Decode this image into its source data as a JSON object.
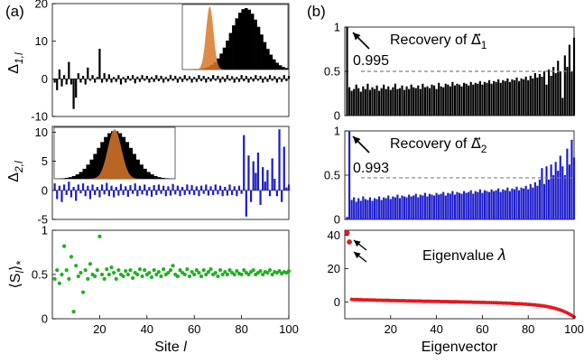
{
  "panel_labels": {
    "a": "(a)",
    "b": "(b)"
  },
  "colors": {
    "black": "#000000",
    "blue": "#1c1ccc",
    "green": "#22b022",
    "red": "#e8161b",
    "orange": "#d9782a",
    "orange_light": "#f0a868",
    "dashed": "#808080"
  },
  "chart_data": [
    {
      "id": "delta1",
      "type": "bar",
      "ylabel": "Δ1,l",
      "ylabel_main": "Δ",
      "ylabel_sub": "1,l",
      "xlim": [
        0,
        100
      ],
      "ylim": [
        -10,
        20
      ],
      "yticks": [
        -10,
        0,
        10,
        20
      ],
      "x": [
        1,
        2,
        3,
        4,
        5,
        6,
        7,
        8,
        9,
        10,
        11,
        12,
        13,
        14,
        15,
        16,
        17,
        18,
        19,
        20,
        21,
        22,
        23,
        24,
        25,
        26,
        27,
        28,
        29,
        30,
        31,
        32,
        33,
        34,
        35,
        36,
        37,
        38,
        39,
        40,
        41,
        42,
        43,
        44,
        45,
        46,
        47,
        48,
        49,
        50,
        51,
        52,
        53,
        54,
        55,
        56,
        57,
        58,
        59,
        60,
        61,
        62,
        63,
        64,
        65,
        66,
        67,
        68,
        69,
        70,
        71,
        72,
        73,
        74,
        75,
        76,
        77,
        78,
        79,
        80,
        81,
        82,
        83,
        84,
        85,
        86,
        87,
        88,
        89,
        90,
        91,
        92,
        93,
        94,
        95,
        96,
        97,
        98,
        99,
        100
      ],
      "values": [
        -1.0,
        -3.0,
        2.5,
        -2.0,
        1.0,
        -1.5,
        4.5,
        -1.5,
        -8.0,
        -5.0,
        1.5,
        -1.0,
        0.8,
        -1.5,
        3.0,
        -0.5,
        1.0,
        -1.0,
        0.5,
        8.0,
        -1.0,
        1.5,
        -0.8,
        1.2,
        -1.0,
        0.5,
        -0.8,
        1.0,
        -1.5,
        0.5,
        -1.0,
        0.8,
        -0.5,
        1.0,
        -1.2,
        0.6,
        -0.8,
        1.0,
        -0.5,
        0.8,
        -1.0,
        0.5,
        -0.8,
        1.0,
        -0.6,
        0.8,
        -1.0,
        0.5,
        -0.7,
        1.0,
        -0.5,
        0.8,
        -1.0,
        0.6,
        -0.8,
        1.0,
        -0.5,
        0.7,
        -1.0,
        0.5,
        -0.8,
        1.0,
        -0.6,
        0.8,
        -1.0,
        0.5,
        -0.7,
        1.0,
        -0.5,
        0.8,
        -1.0,
        0.6,
        -0.8,
        1.0,
        -0.5,
        0.7,
        -1.0,
        0.5,
        -0.8,
        1.0,
        -0.6,
        0.8,
        -1.0,
        0.5,
        -0.7,
        1.0,
        -0.5,
        0.8,
        -1.0,
        0.6,
        -0.8,
        1.0,
        -0.5,
        0.7,
        -1.0,
        0.5,
        -0.8,
        1.0,
        -0.6,
        0.8
      ],
      "inset": {
        "type": "histogram",
        "series": [
          "narrow-orange",
          "broad-black"
        ]
      }
    },
    {
      "id": "delta2",
      "type": "bar",
      "ylabel": "Δ2,l",
      "ylabel_main": "Δ",
      "ylabel_sub": "2,l",
      "xlim": [
        0,
        100
      ],
      "ylim": [
        -5,
        11
      ],
      "yticks": [
        -5,
        0,
        5,
        10
      ],
      "x": [
        1,
        2,
        3,
        4,
        5,
        6,
        7,
        8,
        9,
        10,
        11,
        12,
        13,
        14,
        15,
        16,
        17,
        18,
        19,
        20,
        21,
        22,
        23,
        24,
        25,
        26,
        27,
        28,
        29,
        30,
        31,
        32,
        33,
        34,
        35,
        36,
        37,
        38,
        39,
        40,
        41,
        42,
        43,
        44,
        45,
        46,
        47,
        48,
        49,
        50,
        51,
        52,
        53,
        54,
        55,
        56,
        57,
        58,
        59,
        60,
        61,
        62,
        63,
        64,
        65,
        66,
        67,
        68,
        69,
        70,
        71,
        72,
        73,
        74,
        75,
        76,
        77,
        78,
        79,
        80,
        81,
        82,
        83,
        84,
        85,
        86,
        87,
        88,
        89,
        90,
        91,
        92,
        93,
        94,
        95,
        96,
        97,
        98,
        99,
        100
      ],
      "values": [
        1.2,
        -1.5,
        0.8,
        -2.0,
        1.0,
        -0.8,
        1.5,
        -1.2,
        0.6,
        -1.8,
        1.0,
        -0.5,
        1.2,
        -1.0,
        0.8,
        -1.5,
        1.0,
        -0.8,
        0.6,
        -1.2,
        1.0,
        -0.7,
        1.3,
        -1.0,
        0.8,
        -1.2,
        0.6,
        -0.9,
        1.1,
        -0.8,
        0.7,
        -1.1,
        0.9,
        -0.6,
        1.2,
        -1.0,
        0.8,
        -0.7,
        1.0,
        -0.9,
        0.6,
        -1.1,
        0.9,
        -0.8,
        1.0,
        -0.6,
        0.8,
        -1.0,
        0.7,
        -0.9,
        1.1,
        -0.7,
        0.8,
        -1.0,
        0.6,
        -0.8,
        1.0,
        -0.7,
        0.9,
        -0.8,
        0.7,
        -1.0,
        0.8,
        -0.6,
        1.0,
        -0.9,
        0.7,
        -0.8,
        1.0,
        -0.7,
        0.8,
        -1.0,
        0.6,
        -0.9,
        1.0,
        -0.8,
        0.7,
        -1.0,
        0.8,
        -0.6,
        9.5,
        -4.5,
        6.0,
        -2.0,
        5.0,
        3.0,
        6.5,
        -2.5,
        4.0,
        1.5,
        3.5,
        -1.0,
        5.5,
        2.0,
        -1.0,
        10.5,
        -2.0,
        7.5,
        0.5,
        1.0
      ],
      "inset": {
        "type": "histogram",
        "series": [
          "broad-black",
          "narrow-orange"
        ]
      }
    },
    {
      "id": "s_avg",
      "type": "scatter",
      "ylabel": "⟨S l⟩ *",
      "ylabel_main": "⟨S",
      "ylabel_l": "l",
      "ylabel_close": "⟩",
      "ylabel_sub": "*",
      "xlabel": "Site l",
      "xlabel_main": "Site ",
      "xlabel_var": "l",
      "xlim": [
        0,
        100
      ],
      "ylim": [
        0,
        1
      ],
      "xticks": [
        20,
        40,
        60,
        80,
        100
      ],
      "yticks": [
        0,
        0.5,
        1
      ],
      "x": [
        1,
        2,
        3,
        4,
        5,
        6,
        7,
        8,
        9,
        10,
        11,
        12,
        13,
        14,
        15,
        16,
        17,
        18,
        19,
        20,
        21,
        22,
        23,
        24,
        25,
        26,
        27,
        28,
        29,
        30,
        31,
        32,
        33,
        34,
        35,
        36,
        37,
        38,
        39,
        40,
        41,
        42,
        43,
        44,
        45,
        46,
        47,
        48,
        49,
        50,
        51,
        52,
        53,
        54,
        55,
        56,
        57,
        58,
        59,
        60,
        61,
        62,
        63,
        64,
        65,
        66,
        67,
        68,
        69,
        70,
        71,
        72,
        73,
        74,
        75,
        76,
        77,
        78,
        79,
        80,
        81,
        82,
        83,
        84,
        85,
        86,
        87,
        88,
        89,
        90,
        91,
        92,
        93,
        94,
        95,
        96,
        97,
        98,
        99,
        100
      ],
      "values": [
        0.45,
        0.55,
        0.4,
        0.5,
        0.82,
        0.55,
        0.45,
        0.7,
        0.08,
        0.6,
        0.48,
        0.52,
        0.3,
        0.55,
        0.45,
        0.62,
        0.5,
        0.48,
        0.55,
        0.93,
        0.5,
        0.45,
        0.56,
        0.5,
        0.58,
        0.52,
        0.45,
        0.55,
        0.5,
        0.48,
        0.54,
        0.5,
        0.55,
        0.46,
        0.52,
        0.5,
        0.56,
        0.48,
        0.55,
        0.5,
        0.52,
        0.47,
        0.55,
        0.5,
        0.53,
        0.48,
        0.56,
        0.5,
        0.52,
        0.55,
        0.6,
        0.5,
        0.48,
        0.55,
        0.52,
        0.5,
        0.56,
        0.48,
        0.53,
        0.5,
        0.55,
        0.52,
        0.48,
        0.55,
        0.5,
        0.53,
        0.56,
        0.5,
        0.52,
        0.48,
        0.55,
        0.5,
        0.53,
        0.5,
        0.55,
        0.52,
        0.5,
        0.54,
        0.51,
        0.5,
        0.55,
        0.52,
        0.5,
        0.53,
        0.55,
        0.5,
        0.52,
        0.54,
        0.5,
        0.53,
        0.52,
        0.55,
        0.5,
        0.53,
        0.52,
        0.54,
        0.51,
        0.53,
        0.52,
        0.54
      ]
    },
    {
      "id": "recovery1",
      "type": "bar",
      "annotation": "Recovery of ",
      "annotation_vec": "Δ⃗",
      "annotation_sub": "1",
      "marker_value": "0.995",
      "dashed_line": 0.5,
      "xlim": [
        0,
        100
      ],
      "ylim": [
        0,
        1
      ],
      "yticks": [
        0,
        0.5,
        1
      ],
      "x": [
        1,
        2,
        3,
        4,
        5,
        6,
        7,
        8,
        9,
        10,
        11,
        12,
        13,
        14,
        15,
        16,
        17,
        18,
        19,
        20,
        21,
        22,
        23,
        24,
        25,
        26,
        27,
        28,
        29,
        30,
        31,
        32,
        33,
        34,
        35,
        36,
        37,
        38,
        39,
        40,
        41,
        42,
        43,
        44,
        45,
        46,
        47,
        48,
        49,
        50,
        51,
        52,
        53,
        54,
        55,
        56,
        57,
        58,
        59,
        60,
        61,
        62,
        63,
        64,
        65,
        66,
        67,
        68,
        69,
        70,
        71,
        72,
        73,
        74,
        75,
        76,
        77,
        78,
        79,
        80,
        81,
        82,
        83,
        84,
        85,
        86,
        87,
        88,
        89,
        90,
        91,
        92,
        93,
        94,
        95,
        96,
        97,
        98,
        99,
        100
      ],
      "values": [
        0.995,
        0.32,
        0.28,
        0.3,
        0.35,
        0.31,
        0.27,
        0.33,
        0.3,
        0.36,
        0.29,
        0.32,
        0.3,
        0.34,
        0.28,
        0.31,
        0.35,
        0.3,
        0.33,
        0.29,
        0.32,
        0.36,
        0.3,
        0.31,
        0.34,
        0.29,
        0.33,
        0.3,
        0.35,
        0.32,
        0.31,
        0.34,
        0.3,
        0.36,
        0.32,
        0.33,
        0.31,
        0.35,
        0.34,
        0.3,
        0.37,
        0.33,
        0.32,
        0.36,
        0.35,
        0.33,
        0.38,
        0.34,
        0.36,
        0.35,
        0.33,
        0.37,
        0.36,
        0.34,
        0.38,
        0.35,
        0.37,
        0.36,
        0.39,
        0.35,
        0.38,
        0.37,
        0.4,
        0.36,
        0.39,
        0.38,
        0.41,
        0.37,
        0.4,
        0.39,
        0.42,
        0.38,
        0.41,
        0.4,
        0.43,
        0.39,
        0.42,
        0.41,
        0.44,
        0.4,
        0.45,
        0.42,
        0.48,
        0.43,
        0.47,
        0.44,
        0.5,
        0.35,
        0.52,
        0.45,
        0.55,
        0.48,
        0.62,
        0.5,
        0.2,
        0.68,
        0.55,
        0.8,
        0.5,
        0.88
      ]
    },
    {
      "id": "recovery2",
      "type": "bar",
      "annotation": "Recovery of ",
      "annotation_vec": "Δ⃗",
      "annotation_sub": "2",
      "marker_value": "0.993",
      "dashed_line": 0.47,
      "xlim": [
        0,
        100
      ],
      "ylim": [
        0,
        1
      ],
      "yticks": [
        0,
        0.5,
        1
      ],
      "x": [
        1,
        2,
        3,
        4,
        5,
        6,
        7,
        8,
        9,
        10,
        11,
        12,
        13,
        14,
        15,
        16,
        17,
        18,
        19,
        20,
        21,
        22,
        23,
        24,
        25,
        26,
        27,
        28,
        29,
        30,
        31,
        32,
        33,
        34,
        35,
        36,
        37,
        38,
        39,
        40,
        41,
        42,
        43,
        44,
        45,
        46,
        47,
        48,
        49,
        50,
        51,
        52,
        53,
        54,
        55,
        56,
        57,
        58,
        59,
        60,
        61,
        62,
        63,
        64,
        65,
        66,
        67,
        68,
        69,
        70,
        71,
        72,
        73,
        74,
        75,
        76,
        77,
        78,
        79,
        80,
        81,
        82,
        83,
        84,
        85,
        86,
        87,
        88,
        89,
        90,
        91,
        92,
        93,
        94,
        95,
        96,
        97,
        98,
        99,
        100
      ],
      "values": [
        0.03,
        0.993,
        0.22,
        0.25,
        0.2,
        0.24,
        0.21,
        0.26,
        0.23,
        0.22,
        0.25,
        0.21,
        0.24,
        0.23,
        0.26,
        0.22,
        0.25,
        0.24,
        0.27,
        0.23,
        0.26,
        0.25,
        0.28,
        0.24,
        0.27,
        0.26,
        0.25,
        0.28,
        0.26,
        0.27,
        0.29,
        0.25,
        0.28,
        0.27,
        0.3,
        0.26,
        0.29,
        0.28,
        0.27,
        0.3,
        0.28,
        0.29,
        0.31,
        0.27,
        0.3,
        0.29,
        0.32,
        0.28,
        0.31,
        0.3,
        0.29,
        0.32,
        0.3,
        0.31,
        0.33,
        0.29,
        0.32,
        0.31,
        0.34,
        0.3,
        0.33,
        0.32,
        0.31,
        0.34,
        0.32,
        0.33,
        0.35,
        0.31,
        0.34,
        0.33,
        0.36,
        0.32,
        0.35,
        0.34,
        0.37,
        0.33,
        0.36,
        0.35,
        0.38,
        0.34,
        0.4,
        0.36,
        0.42,
        0.38,
        0.45,
        0.58,
        0.4,
        0.6,
        0.45,
        0.62,
        0.5,
        0.65,
        0.55,
        0.72,
        0.6,
        0.5,
        0.8,
        0.62,
        0.9,
        0.7
      ]
    },
    {
      "id": "eigenvalue",
      "type": "scatter",
      "annotation": "Eigenvalue ",
      "annotation_var": "λ",
      "xlabel": "Eigenvector",
      "xlim": [
        0,
        100
      ],
      "ylim": [
        -10,
        43
      ],
      "xticks": [
        20,
        40,
        60,
        80,
        100
      ],
      "yticks": [
        0,
        20,
        40
      ],
      "x": [
        1,
        2,
        3,
        4,
        5,
        6,
        7,
        8,
        9,
        10,
        11,
        12,
        13,
        14,
        15,
        16,
        17,
        18,
        19,
        20,
        21,
        22,
        23,
        24,
        25,
        26,
        27,
        28,
        29,
        30,
        31,
        32,
        33,
        34,
        35,
        36,
        37,
        38,
        39,
        40,
        41,
        42,
        43,
        44,
        45,
        46,
        47,
        48,
        49,
        50,
        51,
        52,
        53,
        54,
        55,
        56,
        57,
        58,
        59,
        60,
        61,
        62,
        63,
        64,
        65,
        66,
        67,
        68,
        69,
        70,
        71,
        72,
        73,
        74,
        75,
        76,
        77,
        78,
        79,
        80,
        81,
        82,
        83,
        84,
        85,
        86,
        87,
        88,
        89,
        90,
        91,
        92,
        93,
        94,
        95,
        96,
        97,
        98,
        99,
        100
      ],
      "values": [
        41.5,
        36.0,
        1.6,
        1.5,
        1.5,
        1.4,
        1.4,
        1.3,
        1.3,
        1.3,
        1.2,
        1.2,
        1.2,
        1.1,
        1.1,
        1.1,
        1.0,
        1.0,
        1.0,
        0.9,
        0.9,
        0.9,
        0.8,
        0.8,
        0.8,
        0.8,
        0.7,
        0.7,
        0.7,
        0.6,
        0.6,
        0.6,
        0.6,
        0.5,
        0.5,
        0.5,
        0.5,
        0.4,
        0.4,
        0.4,
        0.4,
        0.3,
        0.3,
        0.3,
        0.3,
        0.2,
        0.2,
        0.2,
        0.2,
        0.1,
        0.1,
        0.1,
        0.0,
        0.0,
        0.0,
        -0.1,
        -0.1,
        -0.1,
        -0.2,
        -0.2,
        -0.2,
        -0.3,
        -0.3,
        -0.3,
        -0.4,
        -0.4,
        -0.5,
        -0.5,
        -0.6,
        -0.6,
        -0.7,
        -0.7,
        -0.8,
        -0.9,
        -1.0,
        -1.0,
        -1.1,
        -1.2,
        -1.3,
        -1.4,
        -1.5,
        -1.6,
        -1.7,
        -1.9,
        -2.0,
        -2.2,
        -2.4,
        -2.6,
        -2.9,
        -3.2,
        -3.5,
        -3.9,
        -4.3,
        -4.8,
        -5.3,
        -5.9,
        -6.5,
        -7.2,
        -8.0,
        -9.0
      ]
    }
  ]
}
